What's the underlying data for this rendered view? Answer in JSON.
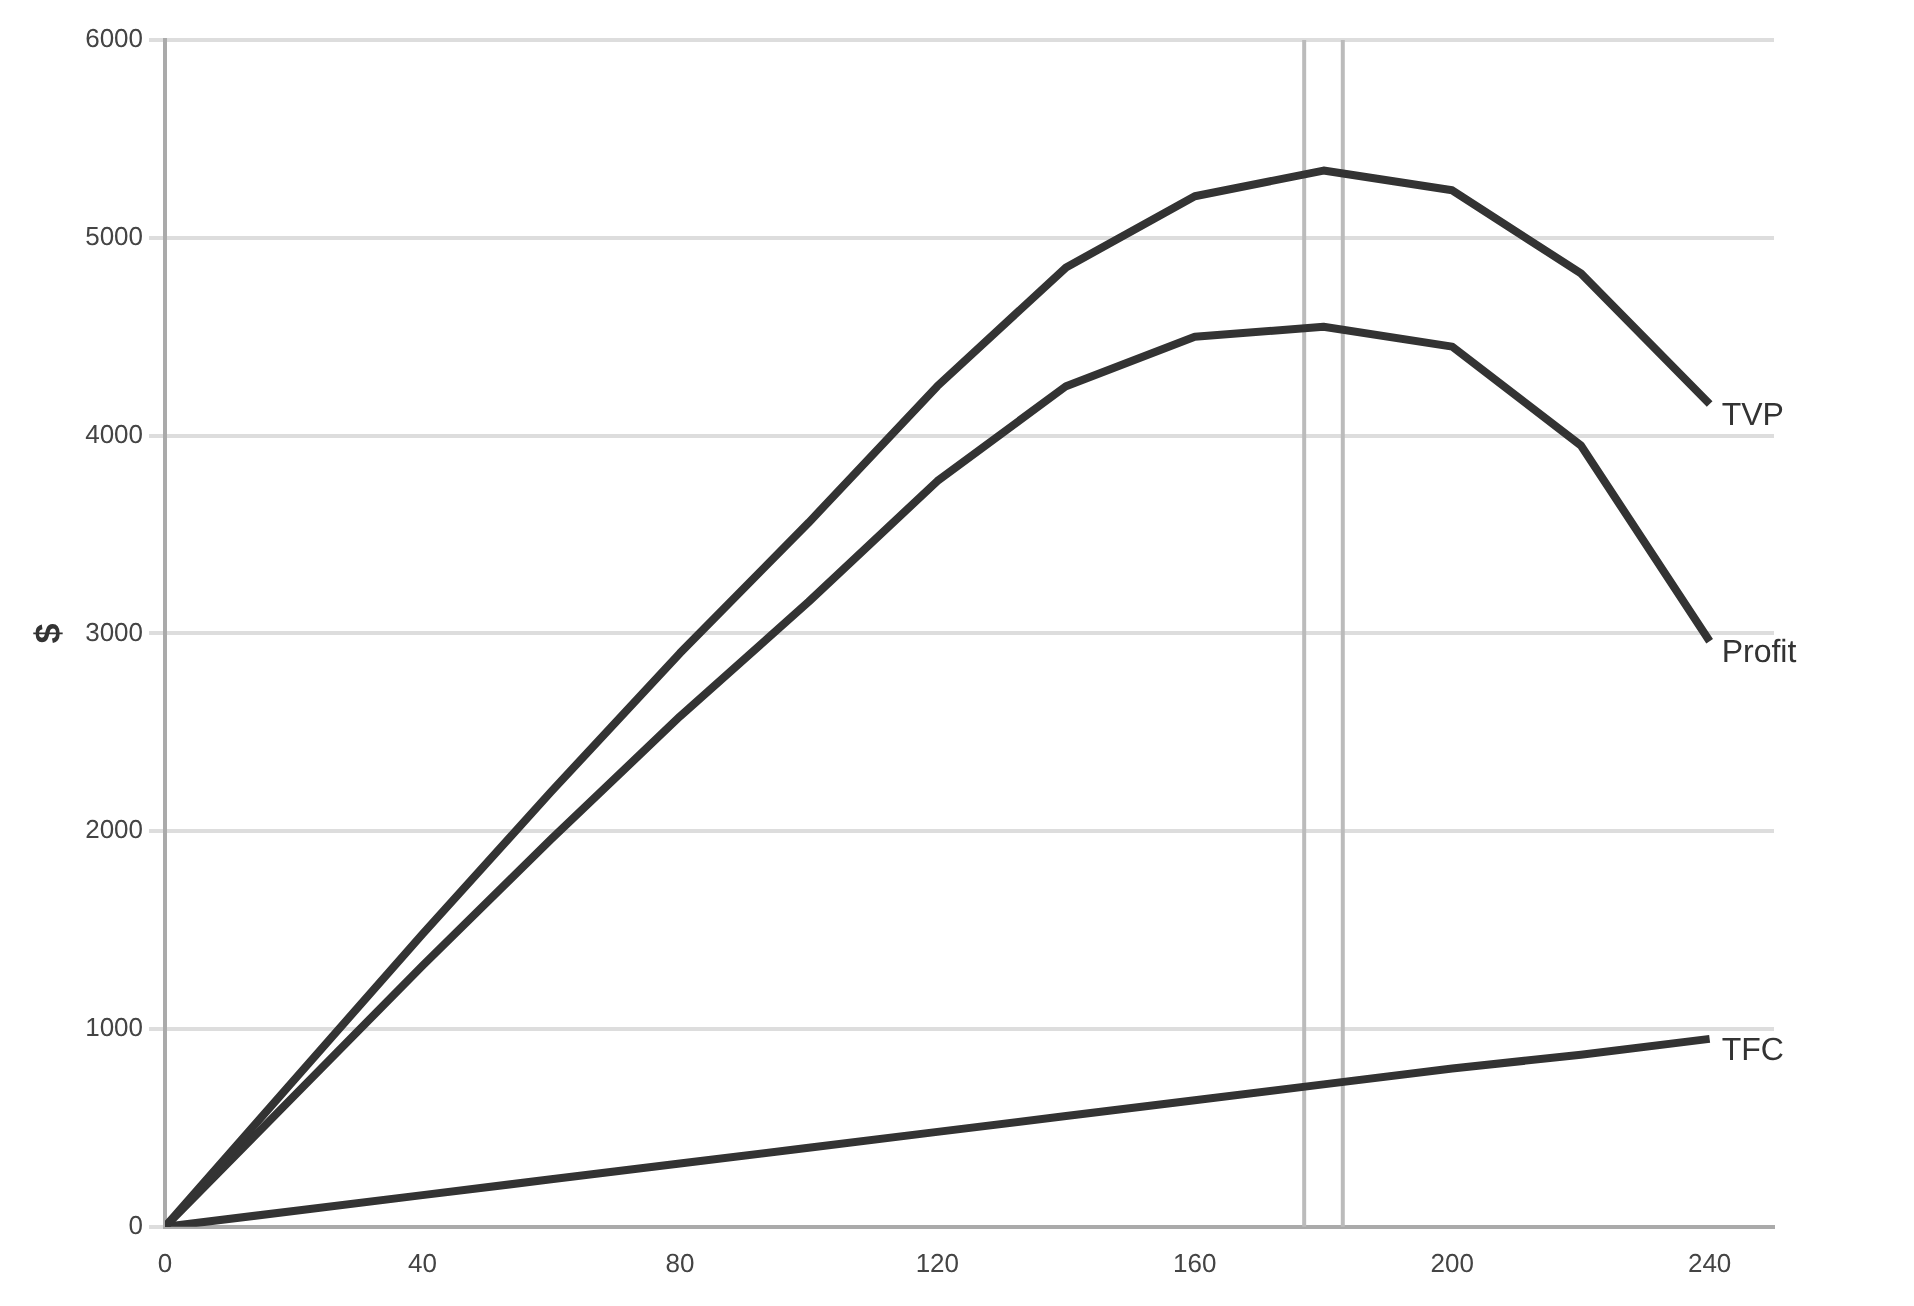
{
  "chart_data": {
    "type": "line",
    "ylabel": "$",
    "x": [
      0,
      20,
      40,
      60,
      80,
      100,
      120,
      140,
      160,
      180,
      200,
      220,
      240
    ],
    "series": [
      {
        "name": "TVP",
        "color": "#333333",
        "values": [
          0,
          740,
          1480,
          2200,
          2900,
          3560,
          4250,
          4850,
          5210,
          5340,
          5240,
          4820,
          4160
        ]
      },
      {
        "name": "Profit",
        "color": "#333333",
        "values": [
          0,
          660,
          1320,
          1960,
          2580,
          3160,
          3770,
          4250,
          4500,
          4550,
          4450,
          3950,
          2960
        ]
      },
      {
        "name": "TFC",
        "color": "#333333",
        "values": [
          0,
          80,
          160,
          240,
          320,
          400,
          480,
          560,
          640,
          720,
          800,
          870,
          950
        ]
      }
    ],
    "xlim": [
      0,
      250
    ],
    "xticks": [
      0,
      40,
      80,
      120,
      160,
      200,
      240
    ],
    "ylim": [
      0,
      6000
    ],
    "yticks": [
      0,
      1000,
      2000,
      3000,
      4000,
      5000,
      6000
    ],
    "ref_lines": [
      {
        "axis": "x",
        "value": 177,
        "color": "#bbbbbb"
      },
      {
        "axis": "x",
        "value": 183,
        "color": "#bbbbbb"
      }
    ],
    "grid": "y",
    "legend": false,
    "marker": "none",
    "line_style": "solid"
  }
}
